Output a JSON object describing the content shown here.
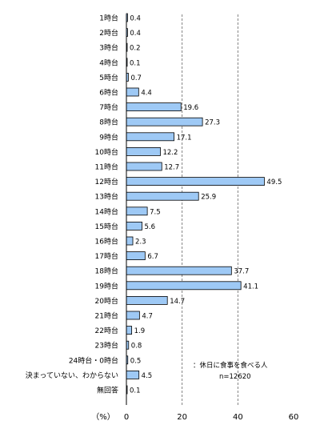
{
  "chart_data": {
    "type": "bar",
    "orientation": "horizontal",
    "categories": [
      "1時台",
      "2時台",
      "3時台",
      "4時台",
      "5時台",
      "6時台",
      "7時台",
      "8時台",
      "9時台",
      "10時台",
      "11時台",
      "12時台",
      "13時台",
      "14時台",
      "15時台",
      "16時台",
      "17時台",
      "18時台",
      "19時台",
      "20時台",
      "21時台",
      "22時台",
      "23時台",
      "24時台・0時台",
      "決まっていない、わからない",
      "無回答"
    ],
    "values": [
      0.4,
      0.4,
      0.2,
      0.1,
      0.7,
      4.4,
      19.6,
      27.3,
      17.1,
      12.2,
      12.7,
      49.5,
      25.9,
      7.5,
      5.6,
      2.3,
      6.7,
      37.7,
      41.1,
      14.7,
      4.7,
      1.9,
      0.8,
      0.5,
      4.5,
      0.1
    ],
    "value_labels": [
      "0.4",
      "0.4",
      "0.2",
      "0.1",
      "0.7",
      "4.4",
      "19.6",
      "27.3",
      "17.1",
      "12.2",
      "12.7",
      "49.5",
      "25.9",
      "7.5",
      "5.6",
      "2.3",
      "6.7",
      "37.7",
      "41.1",
      "14.7",
      "4.7",
      "1.9",
      "0.8",
      "0.5",
      "4.5",
      "0.1"
    ],
    "xlim": [
      0,
      60
    ],
    "ticks": [
      "0",
      "20",
      "40",
      "60"
    ],
    "unit_label": "（%）",
    "grid": "vertical dashed at 20 and 40",
    "bar_color": "#9ec9f5",
    "bar_edge_color": "#000000",
    "note_line1": "：休日に食事を食べる人",
    "note_line2": "n=12620"
  }
}
